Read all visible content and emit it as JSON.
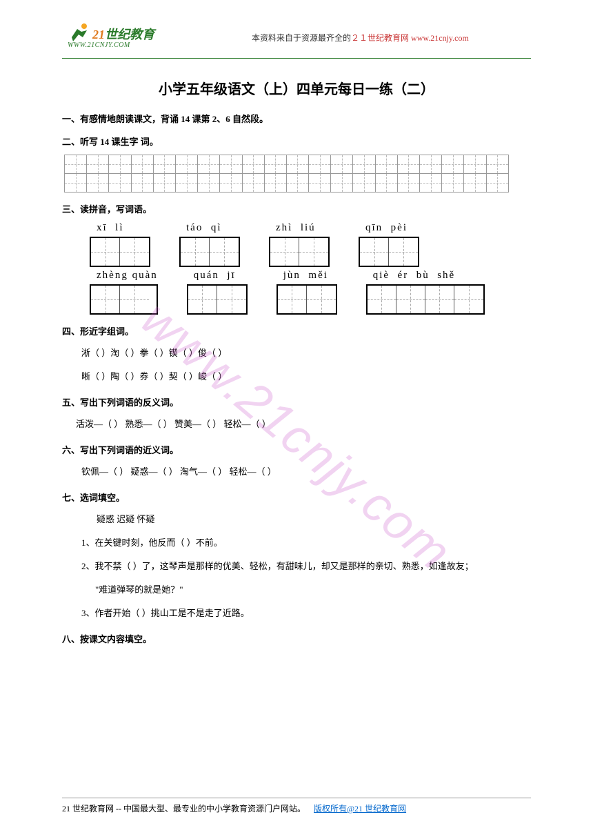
{
  "header": {
    "logo_brand_prefix": "21",
    "logo_brand_suffix": "世纪教育",
    "logo_url": "WWW.21CNJY.COM",
    "attribution_prefix": "本资料来自于资源最齐全的",
    "attribution_brand": "２１世纪教育网",
    "attribution_url": "www.21cnjy.com",
    "colors": {
      "green": "#2a7a2a",
      "orange": "#e07a1f",
      "red": "#c83232"
    }
  },
  "title": "小学五年级语文（上）四单元每日一练（二）",
  "sections": {
    "s1": "一、有感情地朗读课文，背诵 14 课第 2、6 自然段。",
    "s2": "二、听写 14 课生字 词。",
    "s3": "三、读拼音，写词语。",
    "s4": "四、形近字组词。",
    "s5": "五、写出下列词语的反义词。",
    "s6": "六、写出下列词语的近义词。",
    "s7": "七、选词填空。",
    "s8": "八、按课文内容填空。"
  },
  "write_grid": {
    "rows": 2,
    "cols": 20
  },
  "pinyin": {
    "row1": [
      {
        "py": "xī  lì",
        "cells": 2
      },
      {
        "py": "táo  qì",
        "cells": 2
      },
      {
        "py": "zhì  liú",
        "cells": 2
      },
      {
        "py": "qīn  pèi",
        "cells": 2
      }
    ],
    "row2": [
      {
        "py": "zhèng quàn",
        "cells": 2
      },
      {
        "py": "quán  jī",
        "cells": 2
      },
      {
        "py": "jùn  měi",
        "cells": 2
      },
      {
        "py": "qiè  ér  bù  shě",
        "cells": 4
      }
    ]
  },
  "q4": {
    "line1": "淅（        ）淘（        ）拳（        ）锲（        ）俊（        ）",
    "line2": "晰（        ）陶（        ）券（        ）契（        ）峻（        ）"
  },
  "q5": "活泼—（        ） 熟悉—（        ） 赞美—（        ） 轻松—（        ）",
  "q6": "钦佩—（        ） 疑惑—（        ） 淘气—（        ） 轻松—（        ）",
  "q7": {
    "options": "疑惑   迟疑   怀疑",
    "i1": "1、在关键时刻，他反而（        ）不前。",
    "i2": "2、我不禁（        ）了，这琴声是那样的优美、轻松，有甜味儿，却又是那样的亲切、熟悉，如逢故友；",
    "i2b": "\"难道弹琴的就是她？\"",
    "i3": "3、作者开始（        ）挑山工是不是走了近路。"
  },
  "footer": {
    "text": "21 世纪教育网 -- 中国最大型、最专业的中小学教育资源门户网站。",
    "rights": "版权所有@21 世纪教育网"
  },
  "watermark": "www.21cnjy.com"
}
